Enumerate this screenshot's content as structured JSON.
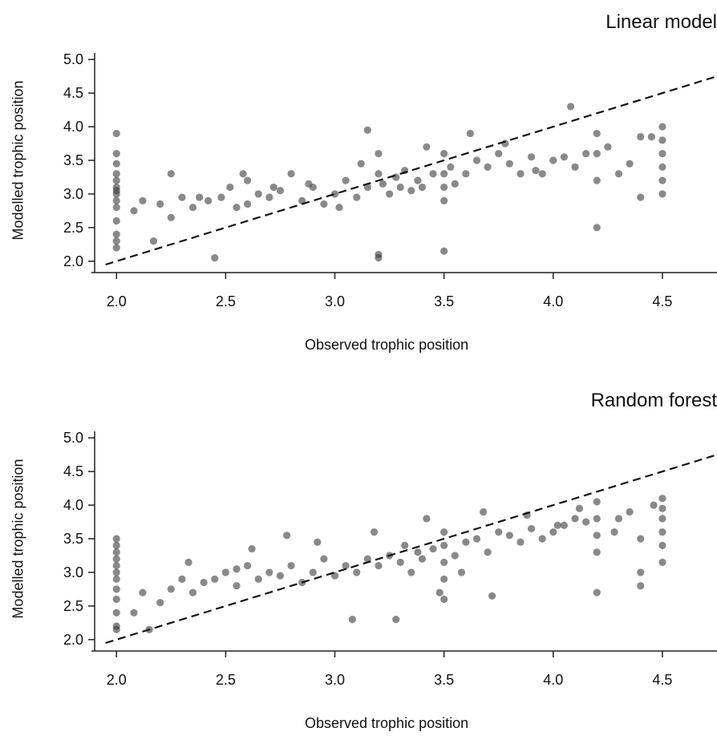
{
  "chart_data": [
    {
      "type": "scatter",
      "title": "Linear model",
      "xlabel": "Observed trophic position",
      "ylabel": "Modelled trophic position",
      "xlim": [
        1.9,
        4.75
      ],
      "ylim": [
        1.95,
        5.05
      ],
      "xticks": [
        "2.0",
        "2.5",
        "3.0",
        "3.5",
        "4.0",
        "4.5"
      ],
      "yticks": [
        "2.0",
        "2.5",
        "3.0",
        "3.5",
        "4.0",
        "4.5",
        "5.0"
      ],
      "reference_line": "1:1 dashed",
      "point_color": "#3a3a3a",
      "x": [
        2.0,
        2.0,
        2.0,
        2.0,
        2.0,
        2.0,
        2.0,
        2.0,
        2.0,
        2.0,
        2.0,
        2.0,
        2.0,
        2.0,
        2.08,
        2.12,
        2.17,
        2.2,
        2.25,
        2.3,
        2.35,
        2.42,
        2.45,
        2.48,
        2.52,
        2.55,
        2.6,
        2.65,
        2.7,
        2.75,
        2.8,
        2.85,
        2.9,
        2.95,
        3.0,
        3.05,
        3.1,
        3.15,
        3.2,
        3.2,
        3.2,
        3.2,
        3.22,
        3.25,
        3.28,
        3.3,
        3.32,
        3.35,
        3.38,
        3.4,
        3.45,
        3.5,
        3.5,
        3.5,
        3.5,
        3.5,
        3.53,
        3.55,
        3.6,
        3.65,
        3.7,
        3.75,
        3.8,
        3.85,
        3.9,
        3.95,
        4.0,
        4.05,
        4.1,
        4.15,
        4.2,
        4.2,
        4.2,
        4.2,
        4.3,
        4.35,
        4.4,
        4.4,
        4.5,
        4.5,
        4.5,
        4.5,
        4.5,
        4.5,
        2.25,
        2.38,
        2.58,
        2.72,
        2.88,
        3.02,
        3.12,
        3.42,
        3.62,
        3.78,
        3.92,
        4.08,
        4.25,
        4.45,
        2.6,
        3.15
      ],
      "y": [
        2.2,
        2.4,
        2.6,
        2.8,
        2.9,
        3.0,
        3.1,
        3.2,
        3.3,
        3.45,
        3.6,
        3.9,
        2.3,
        3.05,
        2.75,
        2.9,
        2.3,
        2.85,
        2.65,
        2.95,
        2.8,
        2.9,
        2.05,
        2.95,
        3.1,
        2.8,
        3.2,
        3.0,
        2.95,
        3.05,
        3.3,
        2.9,
        3.1,
        2.85,
        3.0,
        3.2,
        2.95,
        3.1,
        2.05,
        2.1,
        3.3,
        3.6,
        3.15,
        3.0,
        3.25,
        3.1,
        3.35,
        3.05,
        3.2,
        3.1,
        3.3,
        2.15,
        2.9,
        3.1,
        3.3,
        3.6,
        3.4,
        3.15,
        3.3,
        3.5,
        3.4,
        3.6,
        3.45,
        3.3,
        3.55,
        3.3,
        3.5,
        3.55,
        3.4,
        3.6,
        2.5,
        3.2,
        3.6,
        3.9,
        3.3,
        3.45,
        2.95,
        3.85,
        3.0,
        3.2,
        3.4,
        3.6,
        3.8,
        4.0,
        3.3,
        2.95,
        3.3,
        3.1,
        3.15,
        2.8,
        3.45,
        3.7,
        3.9,
        3.75,
        3.35,
        4.3,
        3.7,
        3.85,
        2.85,
        3.95
      ]
    },
    {
      "type": "scatter",
      "title": "Random forest",
      "xlabel": "Observed trophic position",
      "ylabel": "Modelled trophic position",
      "xlim": [
        1.9,
        4.75
      ],
      "ylim": [
        1.95,
        5.05
      ],
      "xticks": [
        "2.0",
        "2.5",
        "3.0",
        "3.5",
        "4.0",
        "4.5"
      ],
      "yticks": [
        "2.0",
        "2.5",
        "3.0",
        "3.5",
        "4.0",
        "4.5",
        "5.0"
      ],
      "reference_line": "1:1 dashed",
      "point_color": "#3a3a3a",
      "x": [
        2.0,
        2.0,
        2.0,
        2.0,
        2.0,
        2.0,
        2.0,
        2.0,
        2.0,
        2.0,
        2.0,
        2.0,
        2.08,
        2.12,
        2.15,
        2.2,
        2.25,
        2.3,
        2.35,
        2.4,
        2.45,
        2.5,
        2.55,
        2.6,
        2.65,
        2.7,
        2.75,
        2.8,
        2.85,
        2.9,
        2.95,
        3.0,
        3.05,
        3.1,
        3.15,
        3.2,
        3.25,
        3.28,
        3.3,
        3.32,
        3.35,
        3.38,
        3.4,
        3.45,
        3.5,
        3.5,
        3.5,
        3.5,
        3.5,
        3.55,
        3.6,
        3.65,
        3.7,
        3.72,
        3.75,
        3.8,
        3.85,
        3.9,
        3.95,
        4.0,
        4.05,
        4.1,
        4.15,
        4.2,
        4.2,
        4.2,
        4.2,
        4.2,
        4.3,
        4.35,
        4.4,
        4.4,
        4.4,
        4.5,
        4.5,
        4.5,
        4.5,
        4.5,
        4.5,
        2.33,
        2.62,
        2.78,
        2.92,
        3.08,
        3.18,
        3.42,
        3.58,
        3.68,
        3.88,
        4.02,
        4.12,
        4.28,
        4.46,
        2.55,
        3.48
      ],
      "y": [
        2.2,
        2.4,
        2.6,
        2.75,
        2.9,
        3.0,
        3.1,
        3.2,
        3.3,
        3.4,
        3.5,
        2.15,
        2.4,
        2.7,
        2.15,
        2.55,
        2.75,
        2.9,
        2.7,
        2.85,
        2.9,
        3.0,
        2.8,
        3.1,
        2.9,
        3.0,
        2.95,
        3.1,
        2.85,
        3.0,
        3.2,
        2.95,
        3.1,
        3.0,
        3.2,
        3.1,
        3.25,
        2.3,
        3.15,
        3.4,
        3.0,
        3.3,
        3.2,
        3.35,
        2.6,
        2.9,
        3.15,
        3.4,
        3.6,
        3.25,
        3.45,
        3.5,
        3.3,
        2.65,
        3.6,
        3.55,
        3.45,
        3.65,
        3.5,
        3.6,
        3.7,
        3.8,
        3.75,
        2.7,
        3.3,
        3.55,
        3.8,
        4.05,
        3.8,
        3.9,
        2.8,
        3.0,
        3.5,
        3.15,
        3.4,
        3.6,
        3.8,
        3.95,
        4.1,
        3.15,
        3.35,
        3.55,
        3.45,
        2.3,
        3.6,
        3.8,
        3.0,
        3.9,
        3.85,
        3.7,
        3.95,
        3.6,
        4.0,
        3.05,
        2.7
      ]
    }
  ]
}
